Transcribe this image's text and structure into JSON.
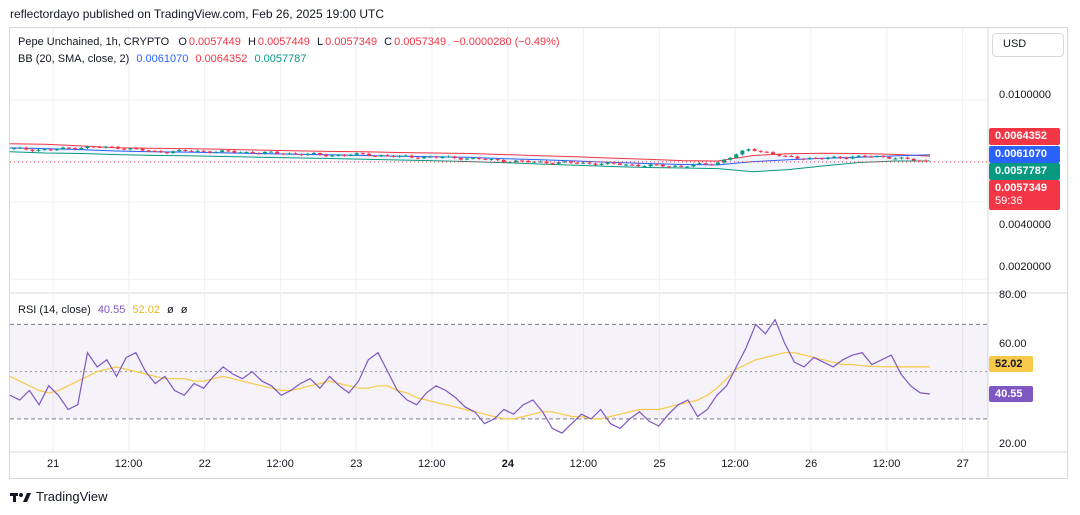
{
  "publisher": "reflectordayo published on TradingView.com, Feb 26, 2025 19:00 UTC",
  "symbol": {
    "title": "Pepe Unchained, 1h, CRYPTO",
    "o_label": "O",
    "o": "0.0057449",
    "h_label": "H",
    "h": "0.0057449",
    "l_label": "L",
    "l": "0.0057349",
    "c_label": "C",
    "c": "0.0057349",
    "change": "−0.0000280 (−0.49%)"
  },
  "bb": {
    "title": "BB (20, SMA, close, 2)",
    "basis": "0.0061070",
    "upper": "0.0064352",
    "lower": "0.0057787"
  },
  "rsi": {
    "title": "RSI (14, close)",
    "value": "40.55",
    "ma": "52.02",
    "extra1": "ø",
    "extra2": "ø"
  },
  "currency_button": "USD",
  "price_tags": {
    "upper": "0.0064352",
    "basis": "0.0061070",
    "lower": "0.0057787",
    "last": "0.0057349",
    "countdown": "59:36"
  },
  "y_axis_labels": [
    "0.0100000",
    "0.0040000",
    "0.0020000"
  ],
  "rsi_axis_labels": [
    "80.00",
    "60.00",
    "20.00"
  ],
  "x_axis_labels": [
    "21",
    "12:00",
    "22",
    "12:00",
    "23",
    "12:00",
    "24",
    "12:00",
    "25",
    "12:00",
    "26",
    "12:00",
    "27"
  ],
  "brand": "TradingView",
  "colors": {
    "bull": "#089981",
    "bear": "#f23645",
    "bb_upper": "#f23645",
    "bb_basis": "#2962ff",
    "bb_lower": "#089981",
    "bb_fill": "#e8f0fe",
    "rsi": "#7e57c2",
    "rsi_ma": "#f7c948",
    "rsi_band": "#7e57c2",
    "grid": "#eef0f3"
  },
  "chart_data": [
    {
      "type": "candlestick",
      "title": "Pepe Unchained, 1h, CRYPTO",
      "scale": "log",
      "x_labels": [
        "21",
        "12:00",
        "22",
        "12:00",
        "23",
        "12:00",
        "24",
        "12:00",
        "25",
        "12:00",
        "26",
        "12:00",
        "27"
      ],
      "y_ticks": [
        0.01,
        0.004,
        0.002
      ],
      "grid": true,
      "series": [
        {
          "name": "BB upper",
          "values": [
            0.00675,
            0.00672,
            0.00662,
            0.00651,
            0.00648,
            0.00646,
            0.00642,
            0.00638,
            0.00634,
            0.0063,
            0.00628,
            0.00624,
            0.00621,
            0.00618,
            0.00612,
            0.00606,
            0.006,
            0.00593,
            0.00587,
            0.0058,
            0.00578,
            0.00607,
            0.00617,
            0.0062,
            0.00618,
            0.00613,
            0.00604
          ]
        },
        {
          "name": "BB basis",
          "values": [
            0.0065,
            0.00646,
            0.0064,
            0.00632,
            0.00628,
            0.00626,
            0.00622,
            0.00618,
            0.00614,
            0.00611,
            0.00607,
            0.00603,
            0.006,
            0.00597,
            0.0059,
            0.00584,
            0.00578,
            0.00571,
            0.00565,
            0.0056,
            0.00558,
            0.00575,
            0.00585,
            0.00592,
            0.00598,
            0.00605,
            0.00611
          ]
        },
        {
          "name": "BB lower",
          "values": [
            0.00628,
            0.00621,
            0.00618,
            0.00612,
            0.00608,
            0.00606,
            0.00602,
            0.00598,
            0.00594,
            0.00591,
            0.00587,
            0.00583,
            0.00579,
            0.00575,
            0.00569,
            0.00562,
            0.00556,
            0.0055,
            0.00545,
            0.00543,
            0.0054,
            0.00525,
            0.00535,
            0.00553,
            0.0057,
            0.00578,
            0.00578
          ]
        },
        {
          "name": "Close",
          "values": [
            0.00645,
            0.00638,
            0.00655,
            0.00652,
            0.00628,
            0.00632,
            0.00628,
            0.00623,
            0.00617,
            0.00608,
            0.00613,
            0.00601,
            0.00598,
            0.00592,
            0.00578,
            0.00572,
            0.00568,
            0.00563,
            0.00555,
            0.00552,
            0.00565,
            0.00645,
            0.00598,
            0.0059,
            0.00602,
            0.00598,
            0.005735
          ]
        }
      ],
      "last_price": 0.0057349
    },
    {
      "type": "line",
      "title": "RSI (14, close)",
      "y_ticks": [
        80,
        60,
        20
      ],
      "bands": [
        70,
        50,
        30
      ],
      "series": [
        {
          "name": "RSI",
          "values": [
            40,
            38,
            42,
            36,
            44,
            40,
            34,
            36,
            58,
            52,
            55,
            48,
            56,
            58,
            50,
            45,
            48,
            42,
            40,
            45,
            43,
            48,
            52,
            49,
            47,
            50,
            46,
            44,
            40,
            42,
            45,
            47,
            43,
            48,
            44,
            41,
            46,
            55,
            58,
            50,
            42,
            38,
            36,
            41,
            44,
            42,
            39,
            35,
            33,
            28,
            30,
            34,
            32,
            36,
            38,
            33,
            26,
            24,
            28,
            32,
            30,
            34,
            28,
            26,
            30,
            33,
            29,
            27,
            32,
            36,
            38,
            31,
            34,
            40,
            44,
            52,
            60,
            70,
            66,
            72,
            62,
            54,
            52,
            56,
            54,
            52,
            55,
            57,
            58,
            53,
            55,
            57,
            49,
            44,
            41,
            40.55
          ]
        },
        {
          "name": "RSI MA",
          "values": [
            48,
            46,
            44,
            42,
            41,
            42,
            44,
            46,
            48,
            50,
            51,
            52,
            51,
            50,
            49,
            48,
            47,
            47,
            47,
            46,
            46,
            47,
            48,
            47,
            46,
            45,
            44,
            43,
            42,
            42,
            43,
            44,
            45,
            46,
            45,
            44,
            43,
            43,
            44,
            44,
            42,
            41,
            39,
            38,
            37,
            36,
            35,
            34,
            33,
            32,
            31,
            30,
            30,
            31,
            32,
            33,
            33,
            32,
            31,
            31,
            30,
            30,
            31,
            32,
            33,
            34,
            34,
            34,
            35,
            36,
            37,
            38,
            40,
            43,
            47,
            51,
            53,
            55,
            56,
            57,
            58,
            58,
            57,
            56,
            55,
            54,
            53,
            53,
            52.5,
            52.2,
            52.1,
            52.05,
            52.02,
            52.02,
            52.02,
            52.02
          ]
        }
      ],
      "last_values": {
        "RSI": 40.55,
        "RSI MA": 52.02
      }
    }
  ]
}
